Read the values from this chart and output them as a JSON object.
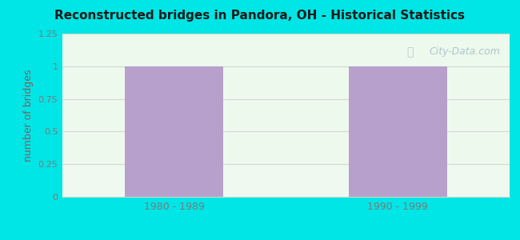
{
  "title": "Reconstructed bridges in Pandora, OH - Historical Statistics",
  "categories": [
    "1980 - 1989",
    "1990 - 1999"
  ],
  "values": [
    1,
    1
  ],
  "bar_color": "#b8a0cc",
  "ylabel": "number of bridges",
  "ylim": [
    0,
    1.25
  ],
  "yticks": [
    0,
    0.25,
    0.5,
    0.75,
    1,
    1.25
  ],
  "ytick_labels": [
    "0",
    "0.25",
    "0.5",
    "0.75",
    "1",
    "1.25"
  ],
  "figure_bg": "#00e5e5",
  "axes_bg": "#f0f8ee",
  "title_color": "#1a1a1a",
  "ylabel_color": "#7a6060",
  "tick_color": "#7a7a7a",
  "watermark_text": "City-Data.com",
  "watermark_color": "#a0b8c8",
  "grid_color": "#d0d8d0",
  "bar_positions": [
    0.25,
    0.75
  ],
  "bar_width": 0.22,
  "xlim": [
    0,
    1
  ]
}
